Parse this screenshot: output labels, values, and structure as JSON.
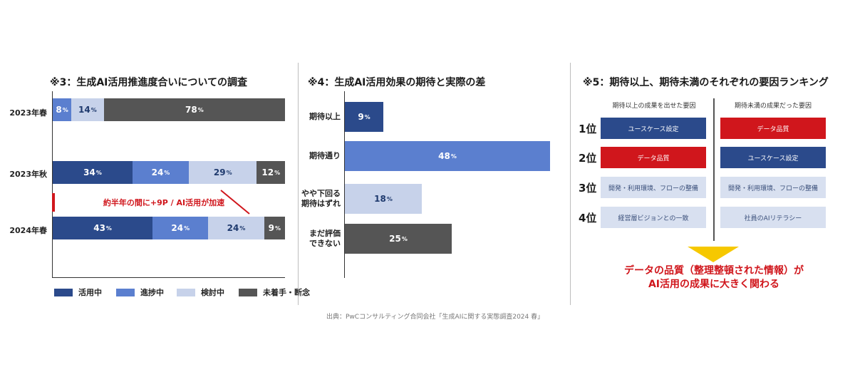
{
  "colors": {
    "dark_blue": "#2b4a8b",
    "mid_blue": "#5b7fcf",
    "light_blue": "#c7d2ea",
    "gray": "#555555",
    "red": "#d0161c",
    "yellow": "#f6c800"
  },
  "chart_data": [
    {
      "type": "bar",
      "orientation": "horizontal-stacked",
      "title": "※3：生成AI活用推進度合いについての調査",
      "categories": [
        "2023年春",
        "2023年秋",
        "2024年春"
      ],
      "series": [
        {
          "name": "活用中",
          "values": [
            null,
            34,
            43
          ],
          "labels": [
            "",
            "34",
            "43"
          ]
        },
        {
          "name": "進捗中",
          "values": [
            8,
            24,
            24
          ],
          "labels": [
            "8",
            "24",
            "24"
          ]
        },
        {
          "name": "検討中",
          "values": [
            14,
            29,
            24
          ],
          "labels": [
            "14",
            "29",
            "24"
          ]
        },
        {
          "name": "未着手・断念",
          "values": [
            78,
            12,
            9
          ],
          "labels": [
            "78",
            "12",
            "9"
          ]
        }
      ],
      "unit": "%",
      "annotation": "約半年の間に+9P / AI活用が加速",
      "legend_position": "bottom"
    },
    {
      "type": "bar",
      "orientation": "horizontal",
      "title": "※4：生成AI活用効果の期待と実際の差",
      "categories": [
        "期待以上",
        "期待通り",
        "やや下回る 期待はずれ",
        "まだ評価 できない"
      ],
      "category_lines": [
        [
          "期待以上"
        ],
        [
          "期待通り"
        ],
        [
          "やや下回る",
          "期待はずれ"
        ],
        [
          "まだ評価",
          "できない"
        ]
      ],
      "values": [
        9,
        48,
        18,
        25
      ],
      "labels": [
        "9",
        "48",
        "18",
        "25"
      ],
      "unit": "%"
    },
    {
      "type": "table",
      "title": "※5：期待以上、期待未満のそれぞれの要因ランキング",
      "columns": [
        "期待以上の成果を出せた要因",
        "期待未満の成果だった要因"
      ],
      "ranks": [
        "1位",
        "2位",
        "3位",
        "4位"
      ],
      "rows": [
        [
          "ユースケース設定",
          "データ品質"
        ],
        [
          "データ品質",
          "ユースケース設定"
        ],
        [
          "開発・利用環境、フローの整備",
          "開発・利用環境、フローの整備"
        ],
        [
          "経営層ビジョンとの一致",
          "社員のAIリテラシー"
        ]
      ],
      "conclusion": [
        "データの品質（整理整頓された情報）が",
        "AI活用の成果に大きく関わる"
      ]
    }
  ],
  "source": "出典：PwCコンサルティング合同会社「生成AIに関する実態調査2024 春」"
}
